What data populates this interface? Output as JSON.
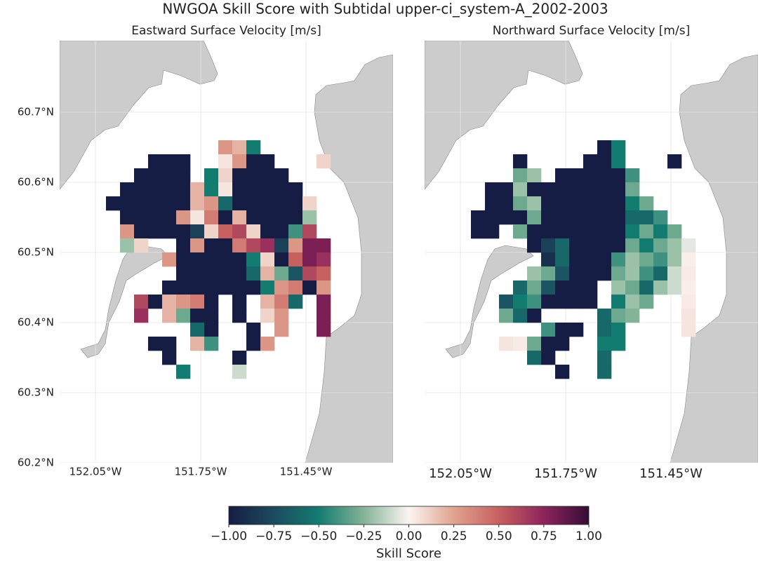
{
  "title": "NWGOA Skill Score with Subtidal upper-ci_system-A_2002-2003",
  "colorbar": {
    "label": "Skill Score",
    "clim": [
      -1,
      1
    ],
    "colormap": [
      "#151d44",
      "#1d4a5e",
      "#137c71",
      "#84b497",
      "#fbf5f2",
      "#e0a38f",
      "#c7615f",
      "#8e245c",
      "#340d35"
    ],
    "ticks": [
      {
        "value": -1,
        "label": "−1.00"
      },
      {
        "value": -0.75,
        "label": "−0.75"
      },
      {
        "value": -0.5,
        "label": "−0.50"
      },
      {
        "value": -0.25,
        "label": "−0.25"
      },
      {
        "value": 0,
        "label": "0.00"
      },
      {
        "value": 0.25,
        "label": "0.25"
      },
      {
        "value": 0.5,
        "label": "0.50"
      },
      {
        "value": 0.75,
        "label": "0.75"
      },
      {
        "value": 1,
        "label": "1.00"
      }
    ]
  },
  "chart_data": [
    {
      "type": "heatmap",
      "title": "Eastward Surface Velocity [m/s]",
      "x": [
        -152.0,
        -151.96,
        -151.92,
        -151.88,
        -151.84,
        -151.8,
        -151.76,
        -151.72,
        -151.68,
        -151.64,
        -151.6,
        -151.56,
        -151.52,
        -151.48,
        -151.44,
        -151.4,
        -151.36
      ],
      "y": [
        60.65,
        60.63,
        60.61,
        60.59,
        60.57,
        60.55,
        60.53,
        60.51,
        60.49,
        60.47,
        60.45,
        60.43,
        60.41,
        60.39,
        60.37,
        60.35,
        60.33
      ],
      "values": [
        [
          null,
          null,
          null,
          null,
          null,
          null,
          null,
          null,
          0.3,
          0.2,
          -0.5,
          null,
          null,
          null,
          null,
          null,
          null
        ],
        [
          null,
          null,
          null,
          -1,
          -1,
          -1,
          null,
          null,
          0.05,
          0.3,
          -1,
          -1,
          null,
          null,
          null,
          0.1,
          null
        ],
        [
          null,
          null,
          -1,
          -1,
          -1,
          -1,
          null,
          -0.5,
          0.1,
          -1,
          -1,
          -1,
          -1,
          null,
          null,
          null,
          null
        ],
        [
          null,
          -1,
          -1,
          -1,
          -1,
          -1,
          0.2,
          -0.5,
          0.05,
          -1,
          -1,
          -1,
          -1,
          -1,
          null,
          null,
          null
        ],
        [
          -1,
          -1,
          -1,
          -1,
          -1,
          -1,
          0.2,
          0.3,
          -0.6,
          -1,
          -1,
          -1,
          -1,
          -1,
          0.1,
          null,
          null
        ],
        [
          null,
          -1,
          -1,
          -1,
          -1,
          0.3,
          0.05,
          0.4,
          -1,
          0.2,
          -1,
          -1,
          -1,
          -1,
          -0.2,
          null,
          null
        ],
        [
          null,
          0.3,
          -1,
          -1,
          -1,
          -1,
          -0.8,
          0.1,
          0.5,
          0.6,
          0.1,
          -1,
          -1,
          -0.4,
          0.6,
          null,
          null
        ],
        [
          null,
          -0.2,
          0.1,
          null,
          null,
          -1,
          0.3,
          -1,
          -1,
          0.4,
          0.6,
          0.7,
          -0.8,
          0.3,
          0.8,
          0.8,
          null
        ],
        [
          null,
          null,
          null,
          null,
          0.3,
          -1,
          -1,
          -1,
          -1,
          -1,
          -0.5,
          0.1,
          -1,
          0.5,
          0.8,
          0.7,
          null
        ],
        [
          null,
          null,
          null,
          null,
          null,
          -1,
          -1,
          -1,
          -1,
          -1,
          -0.6,
          0.2,
          -0.3,
          -0.7,
          0.6,
          0.5,
          null
        ],
        [
          null,
          null,
          null,
          null,
          -1,
          -1,
          -1,
          -1,
          -1,
          -1,
          -1,
          -0.5,
          0.3,
          0.4,
          -1,
          0.3,
          null
        ],
        [
          null,
          null,
          0.6,
          -1,
          0.2,
          0.3,
          0.4,
          -1,
          null,
          -1,
          null,
          0.2,
          0.4,
          -0.6,
          null,
          0.8,
          null
        ],
        [
          null,
          null,
          0.7,
          null,
          0.2,
          -0.3,
          -1,
          -1,
          null,
          -1,
          null,
          0.1,
          0.3,
          null,
          null,
          0.8,
          null
        ],
        [
          null,
          null,
          null,
          null,
          null,
          null,
          -0.6,
          -1,
          null,
          null,
          -1,
          null,
          0.3,
          null,
          null,
          0.8,
          null
        ],
        [
          null,
          null,
          null,
          -1,
          -1,
          null,
          0.2,
          -0.4,
          null,
          null,
          -1,
          0.3,
          null,
          null,
          null,
          null,
          null
        ],
        [
          null,
          null,
          null,
          null,
          -1,
          null,
          null,
          null,
          null,
          -1,
          null,
          null,
          null,
          null,
          null,
          null,
          null
        ],
        [
          null,
          null,
          null,
          null,
          null,
          -0.5,
          null,
          null,
          null,
          -0.1,
          null,
          null,
          null,
          null,
          null,
          null,
          null
        ]
      ],
      "xlim": [
        -152.152,
        -151.202
      ],
      "ylim": [
        60.2,
        60.802
      ],
      "xticks": [
        {
          "value": -152.05,
          "label": "152.05°W"
        },
        {
          "value": -151.75,
          "label": "151.75°W"
        },
        {
          "value": -151.45,
          "label": "151.45°W"
        }
      ],
      "yticks": [
        {
          "value": 60.2,
          "label": "60.2°N"
        },
        {
          "value": 60.3,
          "label": "60.3°N"
        },
        {
          "value": 60.4,
          "label": "60.4°N"
        },
        {
          "value": 60.5,
          "label": "60.5°N"
        },
        {
          "value": 60.6,
          "label": "60.6°N"
        },
        {
          "value": 60.7,
          "label": "60.7°N"
        }
      ],
      "grid": true
    },
    {
      "type": "heatmap",
      "title": "Northward Surface Velocity [m/s]",
      "x": [
        -152.0,
        -151.96,
        -151.92,
        -151.88,
        -151.84,
        -151.8,
        -151.76,
        -151.72,
        -151.68,
        -151.64,
        -151.6,
        -151.56,
        -151.52,
        -151.48,
        -151.44,
        -151.4,
        -151.36
      ],
      "y": [
        60.65,
        60.63,
        60.61,
        60.59,
        60.57,
        60.55,
        60.53,
        60.51,
        60.49,
        60.47,
        60.45,
        60.43,
        60.41,
        60.39,
        60.37,
        60.35,
        60.33
      ],
      "values": [
        [
          null,
          null,
          null,
          null,
          null,
          null,
          null,
          null,
          null,
          -1,
          -0.5,
          null,
          null,
          null,
          null,
          null,
          null
        ],
        [
          null,
          null,
          null,
          -1,
          null,
          null,
          null,
          null,
          -1,
          -1,
          -0.5,
          null,
          null,
          null,
          -1,
          null,
          null
        ],
        [
          null,
          null,
          null,
          -0.3,
          -0.2,
          null,
          -1,
          -1,
          -1,
          -1,
          -1,
          -0.4,
          null,
          null,
          null,
          null,
          null
        ],
        [
          null,
          -1,
          -1,
          -0.2,
          -1,
          -1,
          -1,
          -1,
          -1,
          -1,
          -1,
          -0.3,
          null,
          null,
          null,
          null,
          null
        ],
        [
          null,
          -1,
          -1,
          -0.3,
          -0.2,
          -1,
          -1,
          -1,
          -1,
          -1,
          -1,
          -0.5,
          -0.3,
          null,
          null,
          null,
          null
        ],
        [
          -1,
          -1,
          -1,
          -1,
          -0.3,
          -1,
          -1,
          -1,
          -1,
          -1,
          -1,
          -0.6,
          -0.6,
          -0.4,
          null,
          null,
          null
        ],
        [
          -1,
          -1,
          null,
          -0.3,
          -1,
          -1,
          -1,
          -1,
          -1,
          -1,
          -1,
          -0.5,
          -0.3,
          -0.5,
          -0.3,
          null,
          null
        ],
        [
          null,
          null,
          null,
          null,
          -1,
          -0.8,
          -0.6,
          -1,
          -1,
          -1,
          -1,
          -0.3,
          -0.5,
          -0.3,
          -0.2,
          -0.05,
          null
        ],
        [
          null,
          null,
          null,
          null,
          null,
          -0.9,
          -0.6,
          -1,
          -1,
          -1,
          -0.4,
          -0.2,
          -0.3,
          -0.4,
          -0.2,
          0.02,
          null
        ],
        [
          null,
          null,
          null,
          null,
          -0.2,
          -0.3,
          -0.7,
          -1,
          -1,
          -1,
          -0.3,
          -0.2,
          -0.4,
          -0.6,
          -0.1,
          0.03,
          null
        ],
        [
          null,
          null,
          null,
          -0.6,
          -0.3,
          -0.7,
          -1,
          -1,
          -1,
          null,
          -0.2,
          -0.3,
          -0.6,
          -0.2,
          -0.1,
          0.02,
          null
        ],
        [
          null,
          null,
          -0.7,
          -0.5,
          -0.4,
          -1,
          -1,
          -1,
          -1,
          null,
          -0.5,
          -0.2,
          -0.3,
          null,
          null,
          0.03,
          null
        ],
        [
          null,
          null,
          -0.3,
          -0.6,
          -1,
          null,
          null,
          null,
          null,
          -0.6,
          -0.3,
          -0.25,
          null,
          null,
          null,
          0.05,
          null
        ],
        [
          null,
          null,
          null,
          null,
          null,
          -0.4,
          -1,
          -1,
          null,
          -0.6,
          -0.5,
          null,
          null,
          null,
          null,
          0.05,
          null
        ],
        [
          null,
          null,
          0.05,
          0.03,
          -0.3,
          -1,
          -1,
          null,
          null,
          -0.5,
          -0.5,
          null,
          null,
          null,
          null,
          null,
          null
        ],
        [
          null,
          null,
          null,
          null,
          -0.6,
          -1,
          null,
          null,
          null,
          -0.6,
          null,
          null,
          null,
          null,
          null,
          null,
          null
        ],
        [
          null,
          null,
          null,
          null,
          null,
          null,
          -1,
          null,
          null,
          -0.6,
          null,
          null,
          null,
          null,
          null,
          null,
          null
        ]
      ],
      "xlim": [
        -152.152,
        -151.202
      ],
      "ylim": [
        60.2,
        60.802
      ],
      "xticks": [
        {
          "value": -152.05,
          "label": "152.05°W"
        },
        {
          "value": -151.75,
          "label": "151.75°W"
        },
        {
          "value": -151.45,
          "label": "151.45°W"
        }
      ],
      "yticks": [
        60.2,
        60.3,
        60.4,
        60.5,
        60.6,
        60.7
      ],
      "grid": true
    }
  ]
}
